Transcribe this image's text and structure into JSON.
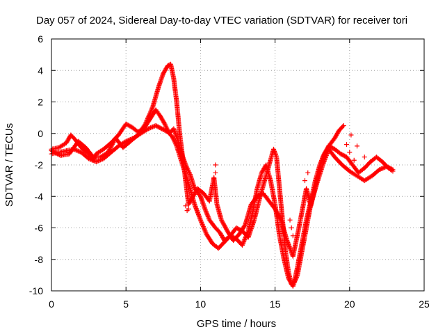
{
  "chart_data": {
    "type": "scatter",
    "title": "Day 057 of 2024, Sidereal Day-to-day VTEC variation (SDTVAR) for receiver tori",
    "xlabel": "GPS time / hours",
    "ylabel": "SDTVAR / TECUs",
    "xlim": [
      0,
      25
    ],
    "ylim": [
      -10,
      6
    ],
    "xticks": [
      "0",
      "5",
      "10",
      "15",
      "20",
      "25"
    ],
    "yticks": [
      "6",
      "4",
      "2",
      "0",
      "-2",
      "-4",
      "-6",
      "-8",
      "-10"
    ],
    "grid": true,
    "legend": "none",
    "marker": "plus",
    "color": "#ff0000",
    "series": [
      {
        "values": [
          [
            0.0,
            -1.0
          ],
          [
            0.5,
            -0.9
          ],
          [
            1.0,
            -0.6
          ],
          [
            1.3,
            -0.1
          ],
          [
            1.6,
            -0.4
          ],
          [
            2.0,
            -0.9
          ],
          [
            2.5,
            -1.3
          ],
          [
            2.8,
            -1.7
          ],
          [
            3.0,
            -1.3
          ],
          [
            3.5,
            -1.0
          ],
          [
            4.0,
            -0.6
          ],
          [
            4.5,
            -0.1
          ],
          [
            5.0,
            0.6
          ],
          [
            5.4,
            0.4
          ],
          [
            5.8,
            0.1
          ],
          [
            6.2,
            0.3
          ],
          [
            6.6,
            0.9
          ],
          [
            7.0,
            1.5
          ],
          [
            7.3,
            1.1
          ],
          [
            7.6,
            0.6
          ],
          [
            7.9,
            0.0
          ],
          [
            8.2,
            0.3
          ],
          [
            8.5,
            -0.5
          ],
          [
            8.7,
            -1.2
          ],
          [
            9.0,
            -2.0
          ],
          [
            9.3,
            -2.6
          ],
          [
            9.6,
            -3.5
          ],
          [
            10.0,
            -4.0
          ],
          [
            10.3,
            -4.8
          ],
          [
            10.6,
            -5.5
          ],
          [
            11.0,
            -6.0
          ],
          [
            11.3,
            -6.3
          ],
          [
            11.6,
            -6.8
          ],
          [
            12.0,
            -6.5
          ],
          [
            12.4,
            -6.0
          ],
          [
            12.8,
            -6.2
          ],
          [
            13.2,
            -6.6
          ],
          [
            13.6,
            -5.5
          ],
          [
            14.0,
            -4.0
          ],
          [
            14.3,
            -3.0
          ],
          [
            14.6,
            -2.0
          ],
          [
            14.9,
            -1.0
          ],
          [
            15.1,
            -1.5
          ],
          [
            15.3,
            -3.5
          ],
          [
            15.5,
            -5.5
          ],
          [
            15.7,
            -7.5
          ],
          [
            15.9,
            -8.8
          ],
          [
            16.1,
            -9.6
          ],
          [
            16.3,
            -9.4
          ],
          [
            16.5,
            -8.5
          ],
          [
            16.7,
            -7.5
          ],
          [
            16.9,
            -6.5
          ],
          [
            17.1,
            -5.5
          ],
          [
            17.4,
            -4.3
          ],
          [
            17.7,
            -3.0
          ],
          [
            18.0,
            -2.0
          ],
          [
            18.3,
            -1.3
          ],
          [
            18.6,
            -0.8
          ],
          [
            19.0,
            -0.3
          ],
          [
            19.3,
            0.2
          ],
          [
            19.6,
            0.5
          ]
        ]
      },
      {
        "values": [
          [
            0.0,
            -1.3
          ],
          [
            0.5,
            -1.2
          ],
          [
            1.0,
            -1.1
          ],
          [
            1.5,
            -1.0
          ],
          [
            2.0,
            -1.2
          ],
          [
            2.5,
            -1.6
          ],
          [
            3.0,
            -1.8
          ],
          [
            3.5,
            -1.6
          ],
          [
            4.0,
            -1.2
          ],
          [
            4.5,
            -0.8
          ],
          [
            5.0,
            -0.5
          ],
          [
            5.5,
            -0.3
          ],
          [
            6.0,
            0.0
          ],
          [
            6.5,
            0.3
          ],
          [
            7.0,
            0.5
          ],
          [
            7.4,
            0.3
          ],
          [
            7.8,
            0.1
          ],
          [
            8.1,
            -0.2
          ],
          [
            8.4,
            -0.8
          ],
          [
            8.8,
            -2.0
          ],
          [
            9.2,
            -3.2
          ],
          [
            9.6,
            -4.5
          ],
          [
            10.0,
            -5.5
          ],
          [
            10.4,
            -6.4
          ],
          [
            10.8,
            -7.0
          ],
          [
            11.2,
            -7.3
          ],
          [
            11.6,
            -6.9
          ],
          [
            12.0,
            -6.5
          ],
          [
            12.4,
            -6.7
          ],
          [
            12.8,
            -7.1
          ],
          [
            13.2,
            -6.2
          ],
          [
            13.5,
            -5.0
          ],
          [
            13.8,
            -3.5
          ],
          [
            14.1,
            -2.5
          ],
          [
            14.4,
            -2.0
          ],
          [
            14.7,
            -3.0
          ],
          [
            15.0,
            -4.5
          ],
          [
            15.3,
            -6.5
          ],
          [
            15.6,
            -8.0
          ],
          [
            15.9,
            -9.2
          ],
          [
            16.2,
            -9.7
          ],
          [
            16.5,
            -9.0
          ],
          [
            16.8,
            -7.5
          ],
          [
            17.1,
            -6.0
          ],
          [
            17.4,
            -4.5
          ],
          [
            17.8,
            -3.2
          ],
          [
            18.2,
            -2.0
          ],
          [
            18.6,
            -1.0
          ],
          [
            19.0,
            -1.5
          ],
          [
            19.5,
            -2.0
          ],
          [
            20.0,
            -2.4
          ],
          [
            20.5,
            -2.7
          ],
          [
            21.0,
            -3.0
          ],
          [
            21.5,
            -2.7
          ],
          [
            22.0,
            -2.3
          ],
          [
            22.5,
            -2.1
          ],
          [
            22.9,
            -2.3
          ]
        ]
      },
      {
        "values": [
          [
            0.0,
            -1.1
          ],
          [
            0.6,
            -1.4
          ],
          [
            1.2,
            -1.3
          ],
          [
            1.8,
            -0.5
          ],
          [
            2.3,
            -0.9
          ],
          [
            2.8,
            -1.5
          ],
          [
            3.3,
            -1.5
          ],
          [
            3.8,
            -1.2
          ],
          [
            4.3,
            -0.3
          ],
          [
            4.8,
            -0.9
          ],
          [
            5.3,
            -0.5
          ],
          [
            5.8,
            -0.1
          ],
          [
            6.3,
            0.6
          ],
          [
            6.8,
            1.7
          ],
          [
            7.2,
            3.0
          ],
          [
            7.5,
            3.8
          ],
          [
            7.8,
            4.3
          ],
          [
            8.0,
            4.4
          ],
          [
            8.2,
            3.5
          ],
          [
            8.4,
            2.0
          ],
          [
            8.6,
            0.0
          ],
          [
            8.8,
            -1.5
          ],
          [
            9.0,
            -3.0
          ],
          [
            9.2,
            -4.5
          ],
          [
            9.5,
            -4.0
          ],
          [
            9.8,
            -3.5
          ],
          [
            10.2,
            -3.8
          ],
          [
            10.6,
            -4.3
          ],
          [
            10.9,
            -2.8
          ],
          [
            11.1,
            -4.5
          ],
          [
            11.4,
            -5.5
          ],
          [
            11.8,
            -6.2
          ],
          [
            12.2,
            -6.8
          ],
          [
            12.6,
            -6.4
          ],
          [
            13.0,
            -5.8
          ],
          [
            13.4,
            -4.5
          ],
          [
            13.8,
            -4.0
          ],
          [
            14.2,
            -3.8
          ],
          [
            14.6,
            -4.3
          ],
          [
            15.0,
            -4.8
          ],
          [
            15.4,
            -5.5
          ],
          [
            15.8,
            -6.8
          ],
          [
            16.2,
            -7.8
          ],
          [
            16.6,
            -6.0
          ],
          [
            16.9,
            -4.5
          ],
          [
            17.1,
            -3.5
          ],
          [
            17.4,
            -4.6
          ],
          [
            17.8,
            -3.0
          ],
          [
            18.2,
            -1.5
          ],
          [
            18.6,
            -0.8
          ],
          [
            19.0,
            -1.0
          ],
          [
            19.4,
            -1.3
          ],
          [
            19.8,
            -1.5
          ],
          [
            20.2,
            -2.0
          ],
          [
            20.6,
            -2.5
          ],
          [
            21.0,
            -2.2
          ],
          [
            21.4,
            -1.8
          ],
          [
            21.8,
            -1.5
          ],
          [
            22.2,
            -1.8
          ],
          [
            22.6,
            -2.2
          ],
          [
            22.9,
            -2.4
          ]
        ]
      },
      {
        "values": [
          [
            9.0,
            -4.6
          ],
          [
            9.1,
            -4.9
          ],
          [
            9.2,
            -4.8
          ],
          [
            11.0,
            -2.0
          ],
          [
            11.0,
            -2.5
          ],
          [
            16.2,
            -6.5
          ],
          [
            16.1,
            -6.0
          ],
          [
            16.0,
            -5.5
          ],
          [
            17.0,
            -3.0
          ],
          [
            17.2,
            -2.5
          ],
          [
            19.8,
            -0.7
          ],
          [
            20.0,
            -1.2
          ],
          [
            20.3,
            -1.7
          ],
          [
            20.1,
            -0.1
          ],
          [
            20.5,
            -0.8
          ],
          [
            21.0,
            -1.5
          ]
        ]
      }
    ]
  }
}
